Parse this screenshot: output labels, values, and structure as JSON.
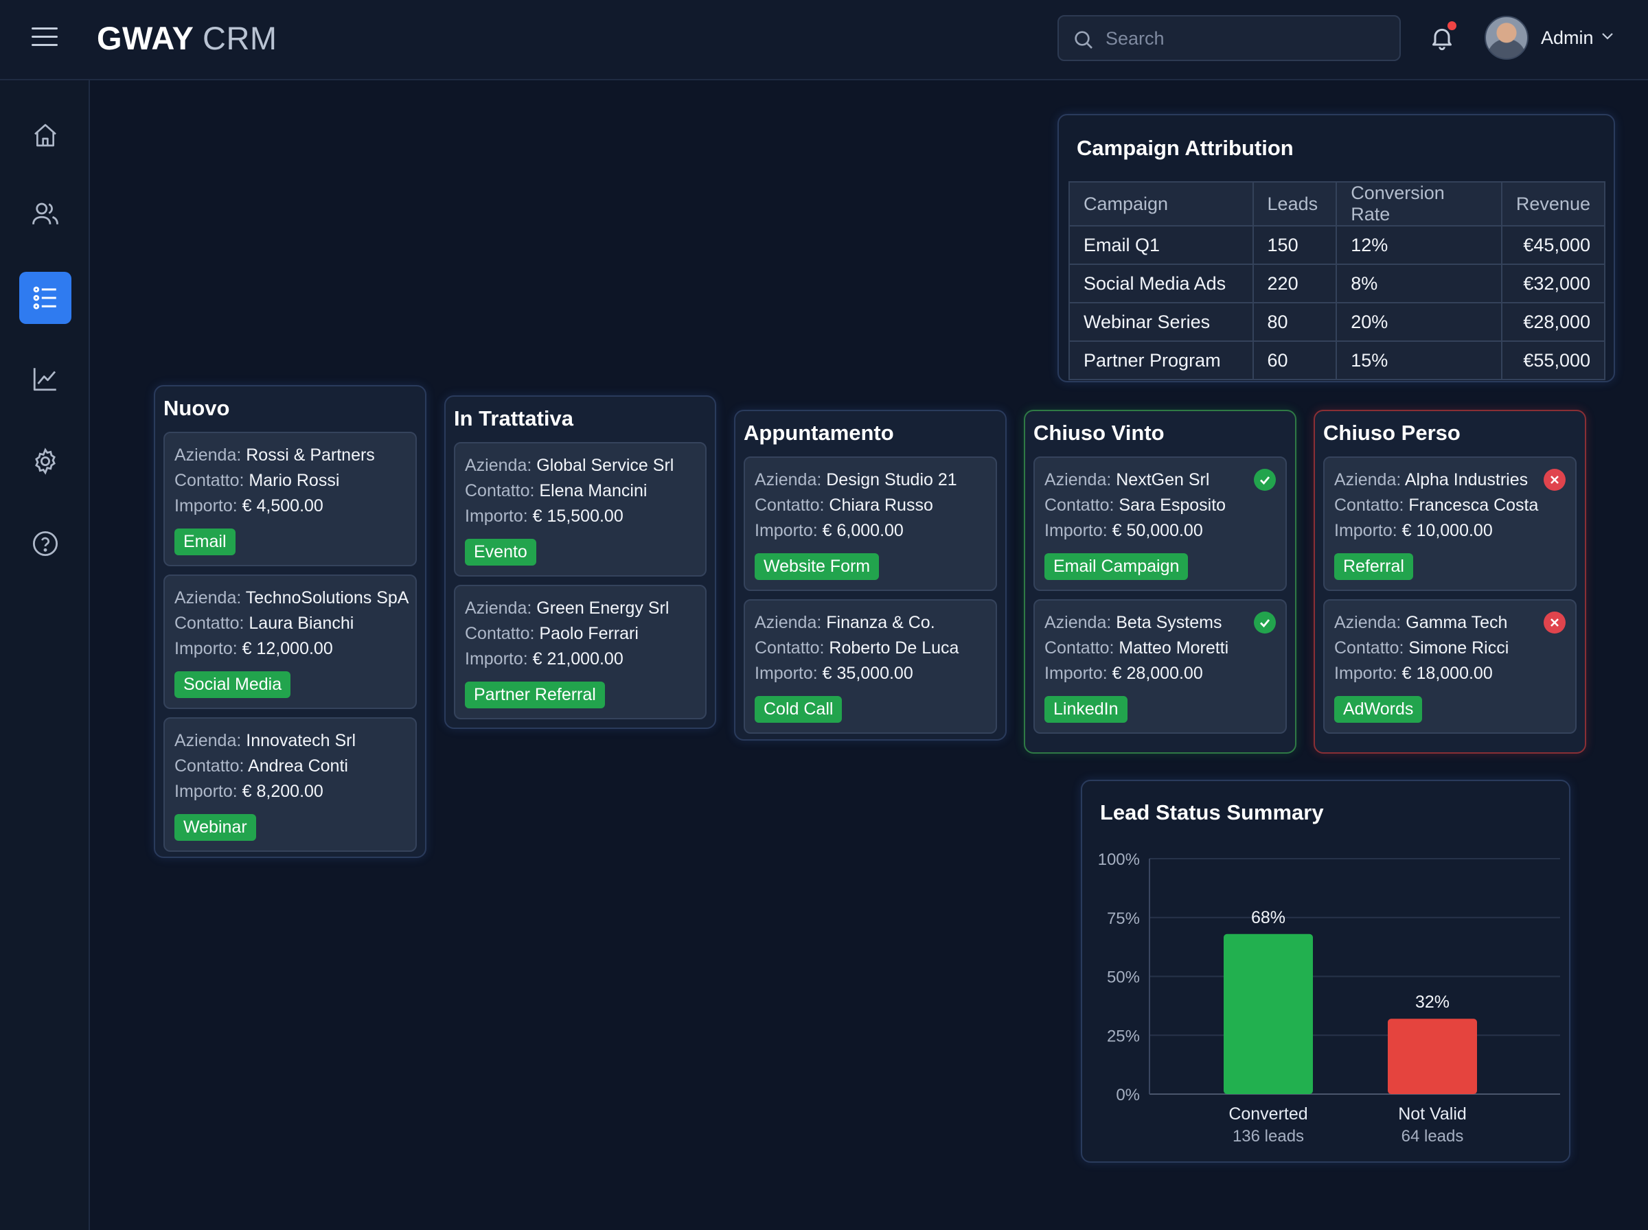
{
  "header": {
    "brand_primary": "GWAY",
    "brand_secondary": "CRM",
    "search_placeholder": "Search",
    "user_name": "Admin"
  },
  "sidebar": {
    "items": [
      {
        "icon": "home-icon",
        "active": false
      },
      {
        "icon": "users-icon",
        "active": false
      },
      {
        "icon": "list-icon",
        "active": true
      },
      {
        "icon": "chart-icon",
        "active": false
      },
      {
        "icon": "gear-icon",
        "active": false
      },
      {
        "icon": "help-icon",
        "active": false
      }
    ]
  },
  "labels": {
    "company": "Azienda: ",
    "contact": "Contatto: ",
    "amount": "Importo: "
  },
  "columns": [
    {
      "title": "Nuovo",
      "cards": [
        {
          "company": "Rossi & Partners",
          "contact": "Mario Rossi",
          "amount": "€ 4,500.00",
          "tag": "Email"
        },
        {
          "company": "TechnoSolutions SpA",
          "contact": "Laura Bianchi",
          "amount": "€ 12,000.00",
          "tag": "Social Media"
        },
        {
          "company": "Innovatech Srl",
          "contact": "Andrea Conti",
          "amount": "€ 8,200.00",
          "tag": "Webinar"
        }
      ]
    },
    {
      "title": "In Trattativa",
      "cards": [
        {
          "company": "Global Service Srl",
          "contact": "Elena Mancini",
          "amount": "€ 15,500.00",
          "tag": "Evento"
        },
        {
          "company": "Green Energy Srl",
          "contact": "Paolo Ferrari",
          "amount": "€ 21,000.00",
          "tag": "Partner Referral"
        }
      ]
    },
    {
      "title": "Appuntamento",
      "cards": [
        {
          "company": "Design Studio 21",
          "contact": "Chiara Russo",
          "amount": "€ 6,000.00",
          "tag": "Website Form"
        },
        {
          "company": "Finanza & Co.",
          "contact": "Roberto De Luca",
          "amount": "€ 35,000.00",
          "tag": "Cold Call"
        }
      ]
    },
    {
      "title": "Chiuso Vinto",
      "cards": [
        {
          "company": "NextGen Srl",
          "contact": "Sara Esposito",
          "amount": "€ 50,000.00",
          "tag": "Email Campaign",
          "status": "check-icon"
        },
        {
          "company": "Beta Systems",
          "contact": "Matteo Moretti",
          "amount": "€ 28,000.00",
          "tag": "LinkedIn",
          "status": "check-icon"
        }
      ]
    },
    {
      "title": "Chiuso Perso",
      "cards": [
        {
          "company": "Alpha Industries",
          "contact": "Francesca Costa",
          "amount": "€ 10,000.00",
          "tag": "Referral",
          "status": "x-icon"
        },
        {
          "company": "Gamma Tech",
          "contact": "Simone Ricci",
          "amount": "€ 18,000.00",
          "tag": "AdWords",
          "status": "x-icon"
        }
      ]
    }
  ],
  "campaign": {
    "title": "Campaign Attribution",
    "headers": [
      "Campaign",
      "Leads",
      "Conversion Rate",
      "Revenue"
    ],
    "rows": [
      [
        "Email Q1",
        "150",
        "12%",
        "€45,000"
      ],
      [
        "Social Media Ads",
        "220",
        "8%",
        "€32,000"
      ],
      [
        "Webinar Series",
        "80",
        "20%",
        "€28,000"
      ],
      [
        "Partner Program",
        "60",
        "15%",
        "€55,000"
      ]
    ]
  },
  "chart_data": {
    "type": "bar",
    "title": "Lead Status Summary",
    "categories": [
      "Converted",
      "Not Valid"
    ],
    "sublabels": [
      "136 leads",
      "64 leads"
    ],
    "values": [
      68,
      32
    ],
    "value_labels": [
      "68%",
      "32%"
    ],
    "ylim": [
      0,
      100
    ],
    "yticks": [
      "0%",
      "25%",
      "50%",
      "75%",
      "100%"
    ],
    "colors": [
      "#22b04f",
      "#e5443e"
    ],
    "grid": true
  },
  "colors": {
    "background": "#0d1526",
    "accent": "#2f7bf0",
    "success": "#22a44d",
    "danger": "#e0444d"
  }
}
